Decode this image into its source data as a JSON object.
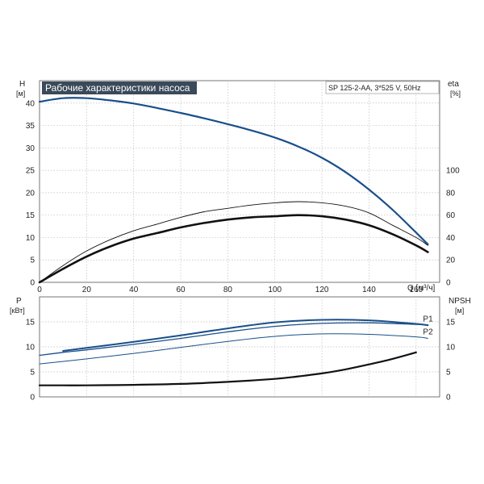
{
  "chart_data": [
    {
      "type": "line",
      "title": "Рабочие характеристики насоса",
      "info": "SP 125-2-AA, 3*525 V, 50Hz",
      "xlabel": "Q [м³/ч]",
      "ylabel": "H",
      "ylabel_unit": "[м]",
      "y2label": "eta",
      "y2label_unit": "[%]",
      "xlim": [
        0,
        170
      ],
      "ylim": [
        0,
        45
      ],
      "y2lim": [
        0,
        180
      ],
      "x_ticks": [
        "0",
        "20",
        "40",
        "60",
        "80",
        "100",
        "120",
        "140",
        "160"
      ],
      "y_ticks": [
        "0",
        "5",
        "10",
        "15",
        "20",
        "25",
        "30",
        "35",
        "40"
      ],
      "y2_ticks": [
        "0",
        "20",
        "40",
        "60",
        "80",
        "100"
      ],
      "grid": true,
      "series": [
        {
          "color": "#1a4f8a",
          "axis": "left",
          "width": 2.2,
          "x": [
            0,
            10,
            20,
            30,
            40,
            50,
            60,
            70,
            80,
            90,
            100,
            110,
            120,
            130,
            140,
            150,
            160,
            165
          ],
          "y": [
            40.3,
            41.1,
            41.1,
            40.6,
            39.9,
            38.9,
            37.8,
            36.6,
            35.3,
            33.9,
            32.3,
            30.3,
            27.8,
            24.6,
            20.7,
            16.2,
            11.1,
            8.5
          ]
        },
        {
          "color": "#111111",
          "axis": "right",
          "width": 0.9,
          "x": [
            0,
            10,
            20,
            30,
            40,
            50,
            60,
            70,
            80,
            90,
            100,
            110,
            120,
            130,
            140,
            150,
            160,
            165
          ],
          "y": [
            0,
            15,
            28,
            38,
            46,
            52,
            58,
            63,
            66,
            69,
            71,
            72,
            71,
            68,
            62,
            51,
            40,
            33
          ]
        },
        {
          "color": "#111111",
          "axis": "right",
          "width": 2.6,
          "x": [
            0,
            10,
            20,
            30,
            40,
            50,
            60,
            70,
            80,
            90,
            100,
            110,
            120,
            130,
            140,
            150,
            160,
            165
          ],
          "y": [
            0,
            12,
            23,
            32,
            39,
            44,
            49,
            53,
            56,
            58,
            59,
            60,
            59,
            56,
            51,
            43,
            33,
            27
          ]
        }
      ]
    },
    {
      "type": "line",
      "ylabel": "P",
      "ylabel_unit": "[кВт]",
      "y2label": "NPSH",
      "y2label_unit": "[м]",
      "xlim": [
        0,
        170
      ],
      "ylim": [
        0,
        20
      ],
      "y2lim": [
        0,
        20
      ],
      "y_ticks": [
        "0",
        "5",
        "10",
        "15"
      ],
      "y2_ticks": [
        "0",
        "5",
        "10",
        "15"
      ],
      "grid": true,
      "series": [
        {
          "name": "P1",
          "color": "#1a4f8a",
          "axis": "left",
          "width": 2.0,
          "x": [
            10,
            20,
            40,
            60,
            80,
            100,
            120,
            140,
            160,
            165
          ],
          "y": [
            9.2,
            9.8,
            11.0,
            12.3,
            13.7,
            14.9,
            15.4,
            15.3,
            14.6,
            14.3
          ]
        },
        {
          "color": "#1a4f8a",
          "axis": "left",
          "width": 1.3,
          "x": [
            0,
            10,
            20,
            40,
            60,
            80,
            100,
            120,
            140,
            160,
            165
          ],
          "y": [
            8.3,
            8.9,
            9.4,
            10.5,
            11.7,
            13.0,
            14.1,
            14.7,
            14.8,
            14.5,
            14.4
          ]
        },
        {
          "name": "P2",
          "color": "#1a4f8a",
          "axis": "left",
          "width": 1.0,
          "x": [
            0,
            20,
            40,
            60,
            80,
            100,
            120,
            140,
            160,
            165
          ],
          "y": [
            6.6,
            7.6,
            8.7,
            9.9,
            11.1,
            12.1,
            12.6,
            12.5,
            12.0,
            11.7
          ]
        },
        {
          "color": "#111111",
          "axis": "right",
          "width": 2.2,
          "x": [
            0,
            10,
            20,
            40,
            60,
            80,
            100,
            110,
            120,
            130,
            140,
            150,
            160
          ],
          "y": [
            2.3,
            2.3,
            2.3,
            2.4,
            2.6,
            3.0,
            3.6,
            4.1,
            4.7,
            5.5,
            6.5,
            7.6,
            8.9
          ]
        }
      ]
    }
  ]
}
